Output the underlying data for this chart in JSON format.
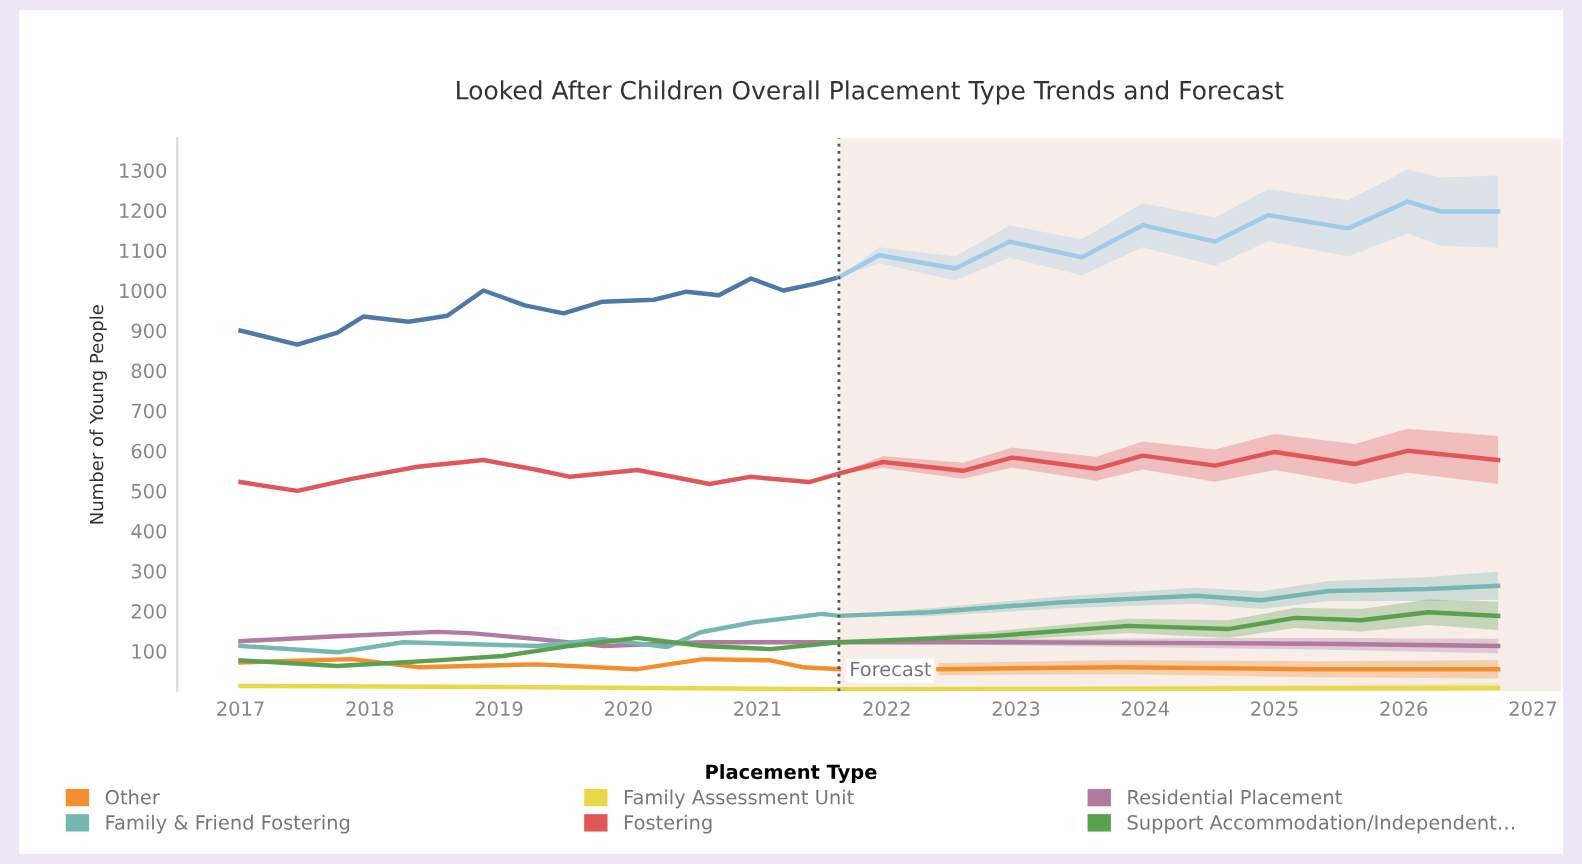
{
  "chart_data": {
    "type": "line",
    "title": "Looked After Children Overall Placement Type Trends and Forecast",
    "ylabel": "Number of Young People",
    "legend_title": "Placement Type",
    "xlim": [
      2016.51,
      2027.22
    ],
    "xticks": [
      2017,
      2018,
      2019,
      2020,
      2021,
      2022,
      2023,
      2024,
      2025,
      2026,
      2027
    ],
    "ylim": [
      0,
      1380
    ],
    "yticks": [
      100,
      200,
      300,
      400,
      500,
      600,
      700,
      800,
      900,
      1000,
      1100,
      1200,
      1300
    ],
    "grid": false,
    "legend": "bottom",
    "marker": "none",
    "line_style": "solid",
    "bands": [
      {
        "axis": "x",
        "from": 2021.63,
        "to": 2027.22,
        "label": "Forecast",
        "color": "#f7ede9"
      }
    ],
    "ref_lines": [
      {
        "axis": "x",
        "value": 2021.63,
        "label": null,
        "color": "#555555",
        "line_style": "dotted"
      }
    ],
    "series": [
      {
        "name": "Other",
        "color": "#f28e2b",
        "x": [
          2017.0,
          2017.86,
          2018.37,
          2019.3,
          2020.07,
          2020.58,
          2021.1,
          2021.35,
          2021.63
        ],
        "values": [
          72,
          80,
          60,
          67,
          55,
          80,
          77,
          60,
          55
        ]
      },
      {
        "name": "Family Assessment Unit",
        "color": "#e8d84a",
        "x": [
          2017.0,
          2019.3,
          2021.63,
          2026.73
        ],
        "values": [
          13,
          10,
          5,
          8
        ],
        "lower": [
          null,
          null,
          5,
          0
        ],
        "upper": [
          null,
          null,
          5,
          20
        ]
      },
      {
        "name": "Residential Placement",
        "color": "#b07aa1",
        "x": [
          2017.0,
          2017.75,
          2018.52,
          2018.78,
          2019.3,
          2019.81,
          2020.58,
          2021.63,
          2023.0,
          2024.5,
          2025.5,
          2026.73
        ],
        "values": [
          125,
          137,
          148,
          145,
          130,
          113,
          122,
          122,
          122,
          120,
          118,
          113
        ],
        "lower": [
          null,
          null,
          null,
          null,
          null,
          null,
          null,
          122,
          114,
          108,
          103,
          95
        ],
        "upper": [
          null,
          null,
          null,
          null,
          null,
          null,
          null,
          122,
          130,
          132,
          133,
          131
        ]
      },
      {
        "name": "Family & Friend Fostering",
        "color": "#76b7b2",
        "x": [
          2017.0,
          2017.75,
          2018.26,
          2019.3,
          2019.8,
          2020.3,
          2020.56,
          2020.97,
          2021.5,
          2021.63,
          2022.33,
          2023.36,
          2024.39,
          2024.9,
          2025.42,
          2026.19,
          2026.73
        ],
        "values": [
          113,
          97,
          122,
          113,
          130,
          110,
          147,
          172,
          193,
          188,
          197,
          222,
          238,
          227,
          250,
          255,
          263
        ],
        "lower": [
          null,
          null,
          null,
          null,
          null,
          null,
          null,
          null,
          null,
          188,
          187,
          207,
          218,
          205,
          225,
          225,
          228
        ],
        "upper": [
          null,
          null,
          null,
          null,
          null,
          null,
          null,
          null,
          null,
          188,
          207,
          237,
          258,
          249,
          275,
          285,
          298
        ]
      },
      {
        "name": "Fostering",
        "color": "#e15759",
        "x": [
          2017.0,
          2017.44,
          2017.86,
          2018.37,
          2018.88,
          2019.3,
          2019.55,
          2020.07,
          2020.63,
          2020.94,
          2021.4,
          2021.63,
          2021.97,
          2022.59,
          2022.97,
          2023.62,
          2023.98,
          2024.54,
          2025.0,
          2025.62,
          2026.03,
          2026.73
        ],
        "values": [
          522,
          500,
          530,
          560,
          577,
          552,
          535,
          552,
          517,
          535,
          522,
          543,
          572,
          550,
          583,
          555,
          588,
          563,
          597,
          567,
          600,
          577
        ],
        "lower": [
          null,
          null,
          null,
          null,
          null,
          null,
          null,
          null,
          null,
          null,
          null,
          543,
          557,
          530,
          558,
          525,
          553,
          523,
          552,
          517,
          545,
          517
        ],
        "upper": [
          null,
          null,
          null,
          null,
          null,
          null,
          null,
          null,
          null,
          null,
          null,
          543,
          587,
          570,
          608,
          585,
          623,
          603,
          642,
          617,
          655,
          637
        ]
      },
      {
        "name": "Support Accommodation/Independent…",
        "color": "#59a14f",
        "x": [
          2017.0,
          2017.75,
          2018.52,
          2019.03,
          2019.55,
          2020.07,
          2020.58,
          2021.1,
          2021.63,
          2022.84,
          2023.87,
          2024.64,
          2025.16,
          2025.67,
          2026.19,
          2026.73
        ],
        "values": [
          77,
          63,
          77,
          88,
          113,
          133,
          113,
          105,
          122,
          138,
          163,
          155,
          183,
          177,
          197,
          188
        ],
        "lower": [
          null,
          null,
          null,
          null,
          null,
          null,
          null,
          null,
          122,
          126,
          145,
          133,
          158,
          149,
          165,
          153
        ],
        "upper": [
          null,
          null,
          null,
          null,
          null,
          null,
          null,
          null,
          122,
          150,
          181,
          177,
          208,
          205,
          229,
          223
        ]
      },
      {
        "color": "#4e79a7",
        "x": [
          2017.0,
          2017.44,
          2017.75,
          2017.95,
          2018.3,
          2018.6,
          2018.88,
          2019.2,
          2019.5,
          2019.8,
          2020.2,
          2020.45,
          2020.7,
          2020.95,
          2021.2,
          2021.45,
          2021.63
        ],
        "values": [
          900,
          865,
          895,
          935,
          922,
          937,
          1000,
          963,
          943,
          972,
          977,
          997,
          988,
          1030,
          1000,
          1017,
          1033
        ]
      },
      {
        "color": "#a0cbe8",
        "x": [
          2021.63,
          2021.94,
          2022.53,
          2022.95,
          2023.51,
          2023.98,
          2024.54,
          2024.95,
          2025.57,
          2026.03,
          2026.29,
          2026.73
        ],
        "values": [
          1033,
          1088,
          1055,
          1122,
          1083,
          1163,
          1122,
          1188,
          1155,
          1222,
          1197,
          1197
        ],
        "lower": [
          1033,
          1068,
          1025,
          1082,
          1038,
          1108,
          1062,
          1123,
          1085,
          1142,
          1112,
          1107
        ],
        "upper": [
          1033,
          1108,
          1085,
          1162,
          1128,
          1218,
          1182,
          1253,
          1225,
          1302,
          1282,
          1287
        ]
      },
      {
        "color": "#f28e2b",
        "x": [
          2022.4,
          2023.79,
          2025.33,
          2026.73
        ],
        "values": [
          55,
          60,
          55,
          55
        ],
        "lower": [
          40,
          42,
          35,
          32
        ],
        "upper": [
          70,
          78,
          75,
          78
        ]
      }
    ]
  }
}
